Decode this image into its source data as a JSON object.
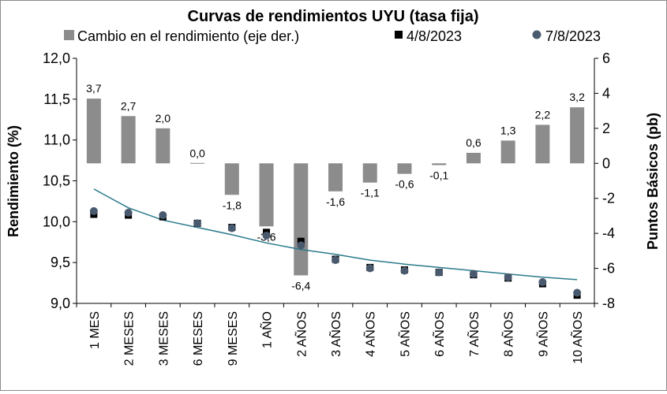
{
  "chart_data": {
    "type": "bar+scatter",
    "title": "Curvas de rendimientos UYU (tasa fija)",
    "ylabel_left": "Rendimiento (%)",
    "ylabel_right": "Puntos Básicos (pb)",
    "categories": [
      "1 MES",
      "2 MESES",
      "3 MESES",
      "6 MESES",
      "9 MESES",
      "1 AÑO",
      "2 AÑOS",
      "3 AÑOS",
      "4 AÑOS",
      "5 AÑOS",
      "6 AÑOS",
      "7 AÑOS",
      "8 AÑOS",
      "9 AÑOS",
      "10 AÑOS"
    ],
    "ylim_left": [
      9.0,
      12.0
    ],
    "yticks_left": [
      "12,0",
      "11,5",
      "11,0",
      "10,5",
      "10,0",
      "9,5",
      "9,0"
    ],
    "ylim_right": [
      -8,
      6
    ],
    "yticks_right": [
      "6",
      "4",
      "2",
      "0",
      "-2",
      "-4",
      "-6",
      "-8"
    ],
    "legend_position": "top",
    "series": [
      {
        "name": "Cambio en el rendimiento (eje der.)",
        "type": "bar",
        "axis": "right",
        "color": "#8c8c8c",
        "values": [
          3.7,
          2.7,
          2.0,
          0.0,
          -1.8,
          -3.6,
          -6.4,
          -1.6,
          -1.1,
          -0.6,
          -0.1,
          0.6,
          1.3,
          2.2,
          3.2
        ],
        "labels": [
          "3,7",
          "2,7",
          "2,0",
          "0,0",
          "-1,8",
          "-3,6",
          "-6,4",
          "-1,6",
          "-1,1",
          "-0,6",
          "-0,1",
          "0,6",
          "1,3",
          "2,2",
          "3,2"
        ]
      },
      {
        "name": "4/8/2023",
        "type": "scatter",
        "marker": "square",
        "axis": "left",
        "color": "#000000",
        "values": [
          10.09,
          10.08,
          10.06,
          9.98,
          9.93,
          9.87,
          9.76,
          9.54,
          9.44,
          9.41,
          9.38,
          9.35,
          9.31,
          9.24,
          9.1
        ]
      },
      {
        "name": "7/8/2023",
        "type": "scatter",
        "marker": "circle",
        "axis": "left",
        "color": "#4a5a6e",
        "values": [
          10.13,
          10.11,
          10.08,
          9.98,
          9.92,
          9.83,
          9.71,
          9.53,
          9.43,
          9.4,
          9.38,
          9.36,
          9.32,
          9.26,
          9.13
        ]
      }
    ],
    "trendline": {
      "type": "logarithmic",
      "color": "#2a7a8c",
      "values": [
        10.4,
        10.17,
        10.02,
        9.93,
        9.84,
        9.74,
        9.66,
        9.6,
        9.53,
        9.48,
        9.44,
        9.4,
        9.36,
        9.32,
        9.29
      ]
    }
  }
}
